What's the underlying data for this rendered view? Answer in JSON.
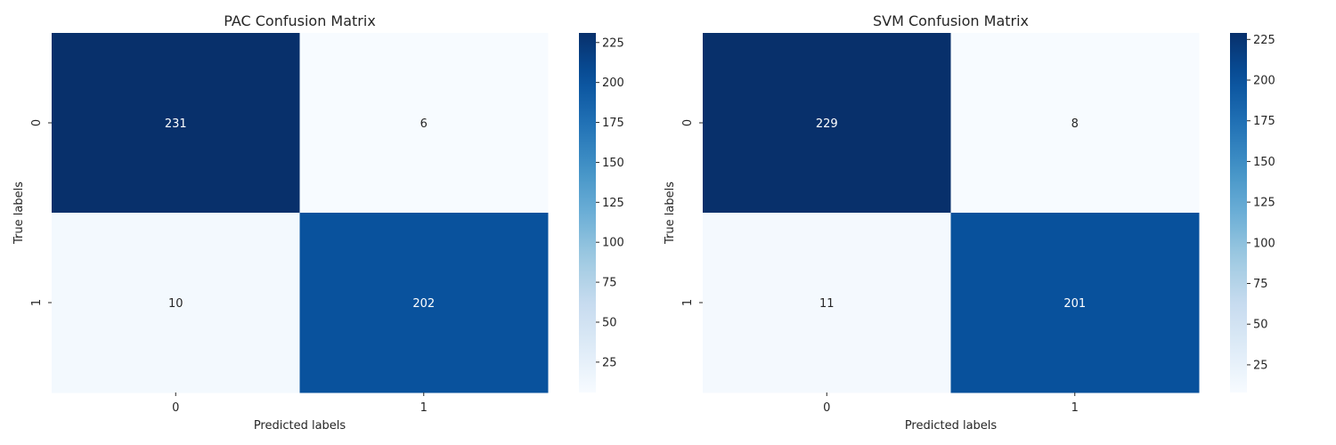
{
  "chart_data": [
    {
      "type": "heatmap",
      "title": "PAC Confusion Matrix",
      "xlabel": "Predicted labels",
      "ylabel": "True labels",
      "x_categories": [
        "0",
        "1"
      ],
      "y_categories": [
        "0",
        "1"
      ],
      "values": [
        [
          231,
          6
        ],
        [
          10,
          202
        ]
      ],
      "colormap": "Blues",
      "colorbar_range": [
        6,
        231
      ],
      "colorbar_ticks": [
        25,
        50,
        75,
        100,
        125,
        150,
        175,
        200,
        225
      ]
    },
    {
      "type": "heatmap",
      "title": "SVM Confusion Matrix",
      "xlabel": "Predicted labels",
      "ylabel": "True labels",
      "x_categories": [
        "0",
        "1"
      ],
      "y_categories": [
        "0",
        "1"
      ],
      "values": [
        [
          229,
          8
        ],
        [
          11,
          201
        ]
      ],
      "colormap": "Blues",
      "colorbar_range": [
        8,
        229
      ],
      "colorbar_ticks": [
        25,
        50,
        75,
        100,
        125,
        150,
        175,
        200,
        225
      ]
    }
  ],
  "colors": {
    "blues_low": "#f7fbff",
    "blues_mid": "#6baed6",
    "blues_high": "#08306b",
    "text_dark": "#262626",
    "text_light": "#ffffff"
  }
}
